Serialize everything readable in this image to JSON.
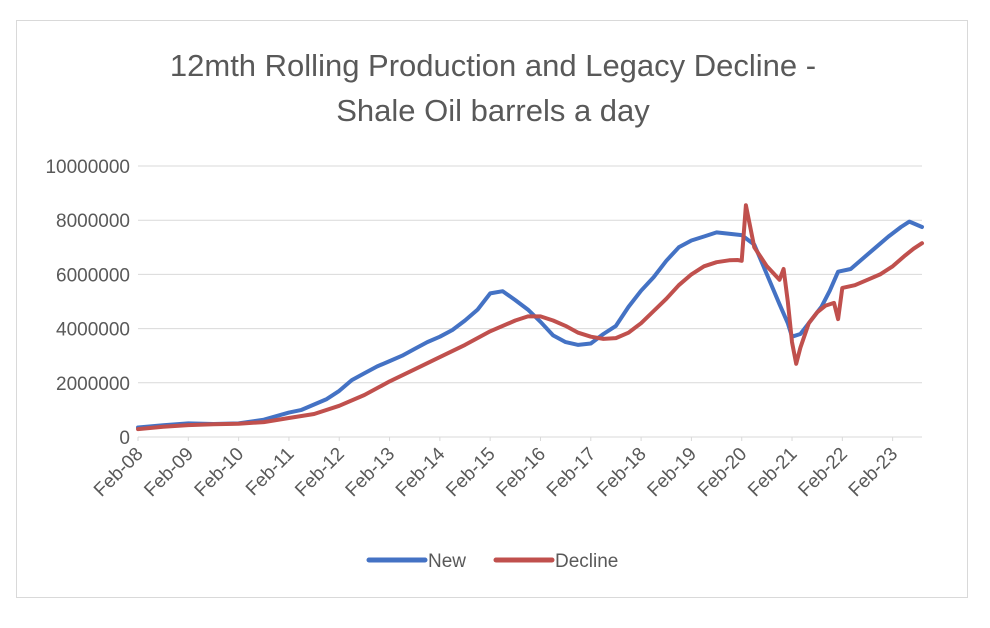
{
  "chart_data": {
    "type": "line",
    "title_lines": [
      "12mth Rolling Production and Legacy Decline -",
      "Shale Oil barrels a day"
    ],
    "xlabel": "",
    "ylabel": "",
    "ylim": [
      0,
      10000000
    ],
    "yticks": [
      "0",
      "2000000",
      "4000000",
      "6000000",
      "8000000",
      "10000000"
    ],
    "ytick_values": [
      0,
      2000000,
      4000000,
      6000000,
      8000000,
      10000000
    ],
    "xlim": [
      0,
      187
    ],
    "xticks": [
      "Feb-08",
      "Feb-09",
      "Feb-10",
      "Feb-11",
      "Feb-12",
      "Feb-13",
      "Feb-14",
      "Feb-15",
      "Feb-16",
      "Feb-17",
      "Feb-18",
      "Feb-19",
      "Feb-20",
      "Feb-21",
      "Feb-22",
      "Feb-23"
    ],
    "xtick_months": [
      0,
      12,
      24,
      36,
      48,
      60,
      72,
      84,
      96,
      108,
      120,
      132,
      144,
      156,
      168,
      180
    ],
    "grid": "horizontal",
    "legend": "bottom",
    "series": [
      {
        "name": "New",
        "color": "#4472c4",
        "points": [
          [
            0,
            350000
          ],
          [
            6,
            430000
          ],
          [
            12,
            500000
          ],
          [
            18,
            480000
          ],
          [
            24,
            500000
          ],
          [
            30,
            640000
          ],
          [
            36,
            900000
          ],
          [
            39,
            1000000
          ],
          [
            42,
            1200000
          ],
          [
            45,
            1400000
          ],
          [
            48,
            1700000
          ],
          [
            51,
            2100000
          ],
          [
            54,
            2350000
          ],
          [
            57,
            2600000
          ],
          [
            60,
            2800000
          ],
          [
            63,
            3000000
          ],
          [
            66,
            3250000
          ],
          [
            69,
            3500000
          ],
          [
            72,
            3700000
          ],
          [
            75,
            3950000
          ],
          [
            78,
            4300000
          ],
          [
            81,
            4700000
          ],
          [
            84,
            5300000
          ],
          [
            87,
            5380000
          ],
          [
            90,
            5050000
          ],
          [
            93,
            4700000
          ],
          [
            96,
            4250000
          ],
          [
            99,
            3750000
          ],
          [
            102,
            3500000
          ],
          [
            105,
            3400000
          ],
          [
            108,
            3450000
          ],
          [
            111,
            3800000
          ],
          [
            114,
            4100000
          ],
          [
            117,
            4800000
          ],
          [
            120,
            5400000
          ],
          [
            123,
            5900000
          ],
          [
            126,
            6500000
          ],
          [
            129,
            7000000
          ],
          [
            132,
            7250000
          ],
          [
            135,
            7400000
          ],
          [
            138,
            7550000
          ],
          [
            141,
            7500000
          ],
          [
            144,
            7450000
          ],
          [
            147,
            7100000
          ],
          [
            150,
            6000000
          ],
          [
            153,
            4900000
          ],
          [
            155,
            4200000
          ],
          [
            156,
            3700000
          ],
          [
            158,
            3800000
          ],
          [
            160,
            4200000
          ],
          [
            163,
            4800000
          ],
          [
            165,
            5400000
          ],
          [
            167,
            6100000
          ],
          [
            170,
            6200000
          ],
          [
            173,
            6600000
          ],
          [
            176,
            7000000
          ],
          [
            179,
            7400000
          ],
          [
            182,
            7750000
          ],
          [
            184,
            7950000
          ],
          [
            187,
            7750000
          ]
        ]
      },
      {
        "name": "Decline",
        "color": "#c0504d",
        "points": [
          [
            0,
            290000
          ],
          [
            6,
            380000
          ],
          [
            12,
            440000
          ],
          [
            18,
            470000
          ],
          [
            24,
            490000
          ],
          [
            30,
            550000
          ],
          [
            36,
            700000
          ],
          [
            42,
            850000
          ],
          [
            48,
            1150000
          ],
          [
            54,
            1550000
          ],
          [
            60,
            2050000
          ],
          [
            66,
            2500000
          ],
          [
            72,
            2950000
          ],
          [
            78,
            3400000
          ],
          [
            84,
            3900000
          ],
          [
            90,
            4300000
          ],
          [
            93,
            4450000
          ],
          [
            96,
            4450000
          ],
          [
            99,
            4300000
          ],
          [
            102,
            4100000
          ],
          [
            105,
            3850000
          ],
          [
            108,
            3700000
          ],
          [
            111,
            3620000
          ],
          [
            114,
            3650000
          ],
          [
            117,
            3850000
          ],
          [
            120,
            4200000
          ],
          [
            123,
            4650000
          ],
          [
            126,
            5100000
          ],
          [
            129,
            5600000
          ],
          [
            132,
            6000000
          ],
          [
            135,
            6300000
          ],
          [
            138,
            6450000
          ],
          [
            141,
            6520000
          ],
          [
            143,
            6530000
          ],
          [
            144,
            6500000
          ],
          [
            145,
            8550000
          ],
          [
            147,
            7000000
          ],
          [
            150,
            6300000
          ],
          [
            153,
            5800000
          ],
          [
            154,
            6200000
          ],
          [
            155,
            5000000
          ],
          [
            156,
            3500000
          ],
          [
            157,
            2700000
          ],
          [
            158,
            3300000
          ],
          [
            160,
            4200000
          ],
          [
            162,
            4600000
          ],
          [
            164,
            4850000
          ],
          [
            166,
            4950000
          ],
          [
            167,
            4350000
          ],
          [
            168,
            5500000
          ],
          [
            171,
            5600000
          ],
          [
            174,
            5800000
          ],
          [
            177,
            6000000
          ],
          [
            180,
            6300000
          ],
          [
            183,
            6700000
          ],
          [
            185,
            6950000
          ],
          [
            187,
            7150000
          ]
        ]
      }
    ]
  }
}
